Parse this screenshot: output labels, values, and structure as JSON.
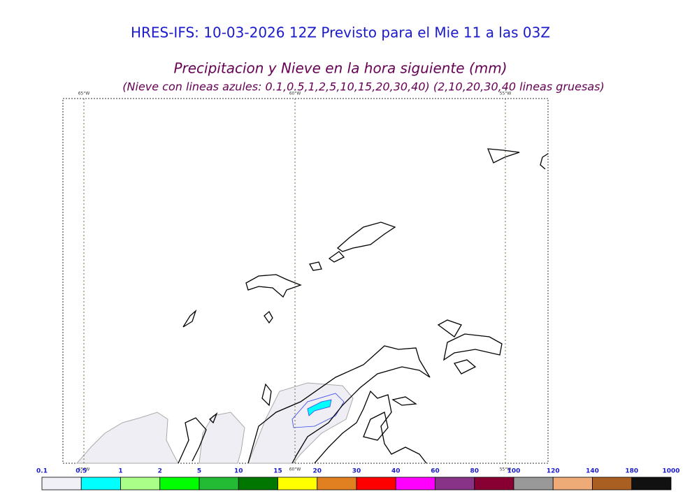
{
  "header": {
    "title": "HRES-IFS: 10-03-2026 12Z Previsto para el Mie 11 a las 03Z",
    "subtitle": "Precipitacion y Nieve en la hora siguiente (mm)",
    "note": "(Nieve con lineas azules: 0.1,0.5,1,2,5,10,15,20,30,40)  (2,10,20,30,40 lineas gruesas)"
  },
  "map": {
    "meridians": [
      "65°W",
      "60°W",
      "55°W"
    ]
  },
  "colorbar": {
    "labels": [
      "0.1",
      "0.5",
      "1",
      "2",
      "5",
      "10",
      "15",
      "20",
      "30",
      "40",
      "60",
      "80",
      "100",
      "120",
      "140",
      "180",
      "1000"
    ],
    "colors": [
      "#f0f0f6",
      "#00ffff",
      "#aaff88",
      "#00ff00",
      "#22bb33",
      "#007700",
      "#ffff00",
      "#e08020",
      "#ff0000",
      "#ff00ff",
      "#883388",
      "#880033",
      "#999999",
      "#eeaa77",
      "#aa5f22",
      "#111111"
    ]
  }
}
